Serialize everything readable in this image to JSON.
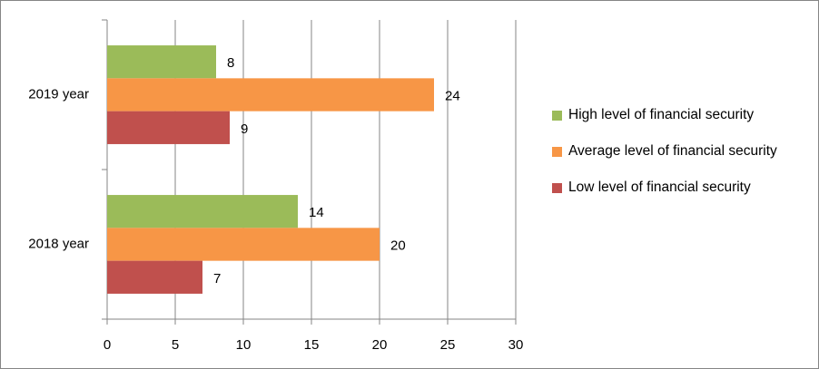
{
  "chart_data": {
    "type": "bar",
    "orientation": "horizontal",
    "categories": [
      "2018 year",
      "2019 year"
    ],
    "series": [
      {
        "name": "High level of financial security",
        "color": "#9bbb59",
        "values": [
          14,
          8
        ]
      },
      {
        "name": "Average level of financial security",
        "color": "#f79646",
        "values": [
          20,
          24
        ]
      },
      {
        "name": "Low level of financial security",
        "color": "#c0504d",
        "values": [
          7,
          9
        ]
      }
    ],
    "xlim": [
      0,
      30
    ],
    "xticks": [
      0,
      5,
      10,
      15,
      20,
      25,
      30
    ],
    "grid": true,
    "legend": "right"
  }
}
